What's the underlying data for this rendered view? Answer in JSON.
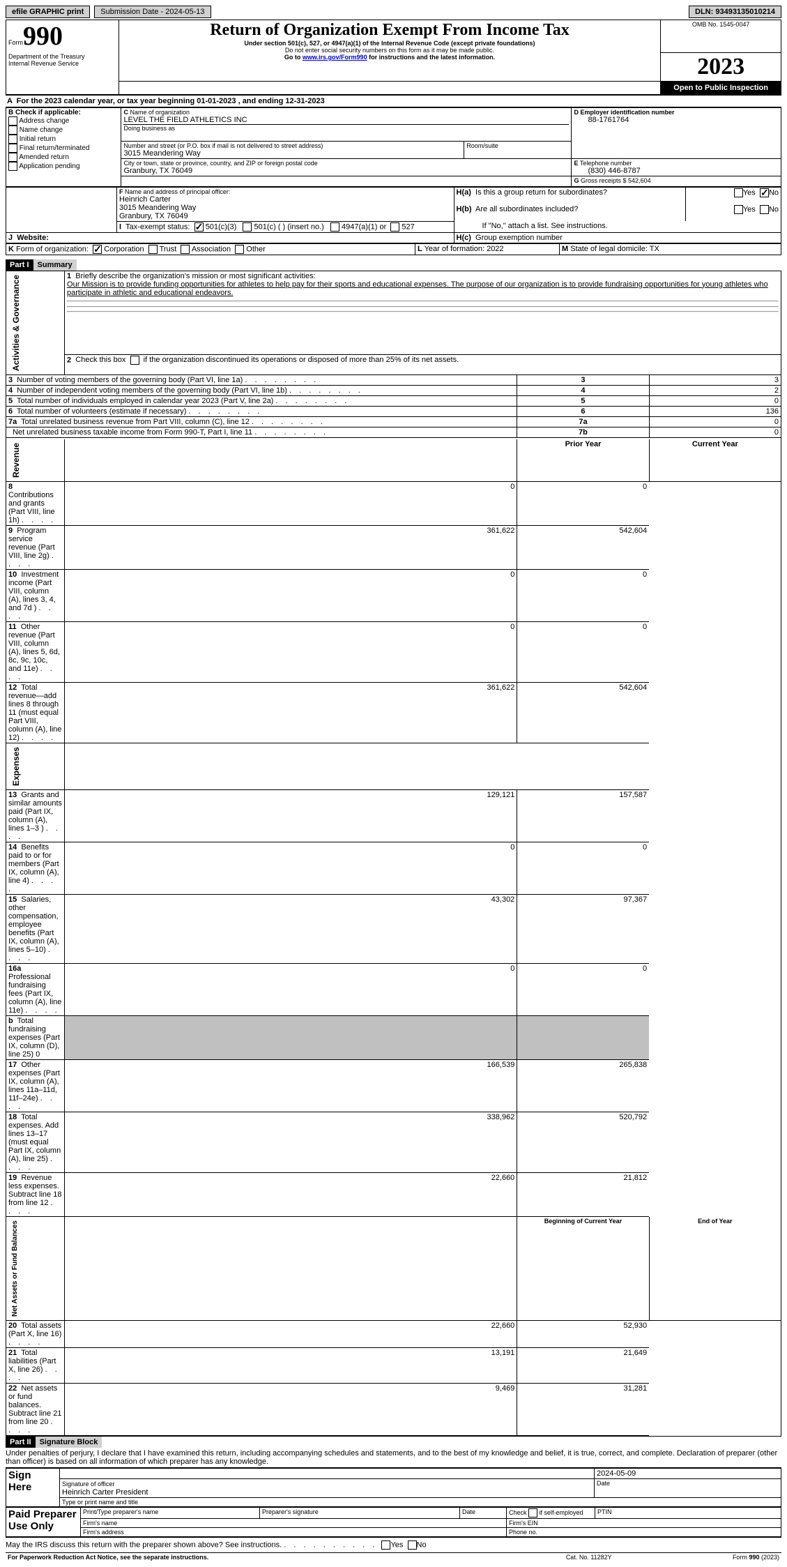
{
  "topbar": {
    "efile": "efile GRAPHIC print",
    "submission_label": "Submission Date - 2024-05-13",
    "dln_label": "DLN: 93493135010214"
  },
  "header": {
    "form_small": "Form",
    "form_big": "990",
    "title": "Return of Organization Exempt From Income Tax",
    "sub1": "Under section 501(c), 527, or 4947(a)(1) of the Internal Revenue Code (except private foundations)",
    "sub2": "Do not enter social security numbers on this form as it may be made public.",
    "sub3_pre": "Go to ",
    "sub3_link": "www.irs.gov/Form990",
    "sub3_post": " for instructions and the latest information.",
    "dept": "Department of the Treasury",
    "irs": "Internal Revenue Service",
    "omb": "OMB No. 1545-0047",
    "year": "2023",
    "open": "Open to Public Inspection"
  },
  "A": {
    "line": "For the 2023 calendar year, or tax year beginning 01-01-2023    , and ending 12-31-2023"
  },
  "B": {
    "label": "Check if applicable:",
    "opts": [
      "Address change",
      "Name change",
      "Initial return",
      "Final return/terminated",
      "Amended return",
      "Application pending"
    ]
  },
  "C": {
    "name_lbl": "Name of organization",
    "name": "LEVEL THE FIELD ATHLETICS INC",
    "dba_lbl": "Doing business as",
    "street_lbl": "Number and street (or P.O. box if mail is not delivered to street address)",
    "room_lbl": "Room/suite",
    "street": "3015 Meandering Way",
    "city_lbl": "City or town, state or province, country, and ZIP or foreign postal code",
    "city": "Granbury, TX   76049"
  },
  "D": {
    "lbl": "Employer identification number",
    "val": "88-1761764"
  },
  "E": {
    "lbl": "Telephone number",
    "val": "(830) 446-8787"
  },
  "G": {
    "lbl": "Gross receipts $",
    "val": "542,604"
  },
  "F": {
    "lbl": "Name and address of principal officer:",
    "name": "Heinrich Carter",
    "street": "3015 Meandering Way",
    "city": "Granbury, TX   76049"
  },
  "H": {
    "a": "Is this a group return for subordinates?",
    "b": "Are all subordinates included?",
    "note": "If \"No,\" attach a list. See instructions.",
    "c": "Group exemption number"
  },
  "I": {
    "lbl": "Tax-exempt status:",
    "o1": "501(c)(3)",
    "o2": "501(c) (  ) (insert no.)",
    "o3": "4947(a)(1) or",
    "o4": "527"
  },
  "J": {
    "lbl": "Website:"
  },
  "K": {
    "lbl": "Form of organization:",
    "o1": "Corporation",
    "o2": "Trust",
    "o3": "Association",
    "o4": "Other"
  },
  "L": {
    "lbl": "Year of formation: 2022"
  },
  "M": {
    "lbl": "State of legal domicile: TX"
  },
  "part1": {
    "hdr": "Part I",
    "title": "Summary"
  },
  "mission_lbl": "Briefly describe the organization's mission or most significant activities:",
  "mission": "Our Mission is to provide funding opportunities for athletes to help pay for their sports and educational expenses. The purpose of our organization is to provide fundraising opportunities for young athletes who participate in athletic and educational endeavors.",
  "line2": "Check this box         if the organization discontinued its operations or disposed of more than 25% of its net assets.",
  "section_labels": {
    "ag": "Activities & Governance",
    "rev": "Revenue",
    "exp": "Expenses",
    "net": "Net Assets or Fund Balances"
  },
  "col_hdr": {
    "prior": "Prior Year",
    "current": "Current Year",
    "boy": "Beginning of Current Year",
    "eoy": "End of Year"
  },
  "rows_ag": [
    {
      "n": "3",
      "t": "Number of voting members of the governing body (Part VI, line 1a)",
      "box": "3",
      "v": "3"
    },
    {
      "n": "4",
      "t": "Number of independent voting members of the governing body (Part VI, line 1b)",
      "box": "4",
      "v": "2"
    },
    {
      "n": "5",
      "t": "Total number of individuals employed in calendar year 2023 (Part V, line 2a)",
      "box": "5",
      "v": "0"
    },
    {
      "n": "6",
      "t": "Total number of volunteers (estimate if necessary)",
      "box": "6",
      "v": "136"
    },
    {
      "n": "7a",
      "t": "Total unrelated business revenue from Part VIII, column (C), line 12",
      "box": "7a",
      "v": "0"
    },
    {
      "n": "",
      "t": "Net unrelated business taxable income from Form 990-T, Part I, line 11",
      "box": "7b",
      "v": "0"
    }
  ],
  "rows_rev": [
    {
      "n": "8",
      "t": "Contributions and grants (Part VIII, line 1h)",
      "p": "0",
      "c": "0"
    },
    {
      "n": "9",
      "t": "Program service revenue (Part VIII, line 2g)",
      "p": "361,622",
      "c": "542,604"
    },
    {
      "n": "10",
      "t": "Investment income (Part VIII, column (A), lines 3, 4, and 7d )",
      "p": "0",
      "c": "0"
    },
    {
      "n": "11",
      "t": "Other revenue (Part VIII, column (A), lines 5, 6d, 8c, 9c, 10c, and 11e)",
      "p": "0",
      "c": "0"
    },
    {
      "n": "12",
      "t": "Total revenue—add lines 8 through 11 (must equal Part VIII, column (A), line 12)",
      "p": "361,622",
      "c": "542,604"
    }
  ],
  "rows_exp": [
    {
      "n": "13",
      "t": "Grants and similar amounts paid (Part IX, column (A), lines 1–3 )",
      "p": "129,121",
      "c": "157,587"
    },
    {
      "n": "14",
      "t": "Benefits paid to or for members (Part IX, column (A), line 4)",
      "p": "0",
      "c": "0"
    },
    {
      "n": "15",
      "t": "Salaries, other compensation, employee benefits (Part IX, column (A), lines 5–10)",
      "p": "43,302",
      "c": "97,367"
    },
    {
      "n": "16a",
      "t": "Professional fundraising fees (Part IX, column (A), line 11e)",
      "p": "0",
      "c": "0"
    },
    {
      "n": "b",
      "t": "Total fundraising expenses (Part IX, column (D), line 25) 0",
      "p": "",
      "c": "",
      "gray": true
    },
    {
      "n": "17",
      "t": "Other expenses (Part IX, column (A), lines 11a–11d, 11f–24e)",
      "p": "166,539",
      "c": "265,838"
    },
    {
      "n": "18",
      "t": "Total expenses. Add lines 13–17 (must equal Part IX, column (A), line 25)",
      "p": "338,962",
      "c": "520,792"
    },
    {
      "n": "19",
      "t": "Revenue less expenses. Subtract line 18 from line 12",
      "p": "22,660",
      "c": "21,812"
    }
  ],
  "rows_net": [
    {
      "n": "20",
      "t": "Total assets (Part X, line 16)",
      "p": "22,660",
      "c": "52,930"
    },
    {
      "n": "21",
      "t": "Total liabilities (Part X, line 26)",
      "p": "13,191",
      "c": "21,649"
    },
    {
      "n": "22",
      "t": "Net assets or fund balances. Subtract line 21 from line 20",
      "p": "9,469",
      "c": "31,281"
    }
  ],
  "part2": {
    "hdr": "Part II",
    "title": "Signature Block"
  },
  "perjury": "Under penalties of perjury, I declare that I have examined this return, including accompanying schedules and statements, and to the best of my knowledge and belief, it is true, correct, and complete. Declaration of preparer (other than officer) is based on all information of which preparer has any knowledge.",
  "sign": {
    "here": "Sign Here",
    "sig_lbl": "Signature of officer",
    "date_lbl": "Date",
    "date": "2024-05-09",
    "officer": "Heinrich Carter  President",
    "type_lbl": "Type or print name and title"
  },
  "paid": {
    "hdr": "Paid Preparer Use Only",
    "name_lbl": "Print/Type preparer's name",
    "sig_lbl": "Preparer's signature",
    "date_lbl": "Date",
    "chk_lbl": "Check          if self-employed",
    "ptin_lbl": "PTIN",
    "firm_lbl": "Firm's name",
    "ein_lbl": "Firm's EIN",
    "addr_lbl": "Firm's address",
    "phone_lbl": "Phone no."
  },
  "discuss": "May the IRS discuss this return with the preparer shown above? See instructions.",
  "footer": {
    "left": "For Paperwork Reduction Act Notice, see the separate instructions.",
    "mid": "Cat. No. 11282Y",
    "right": "Form 990 (2023)"
  },
  "yn": {
    "yes": "Yes",
    "no": "No"
  }
}
